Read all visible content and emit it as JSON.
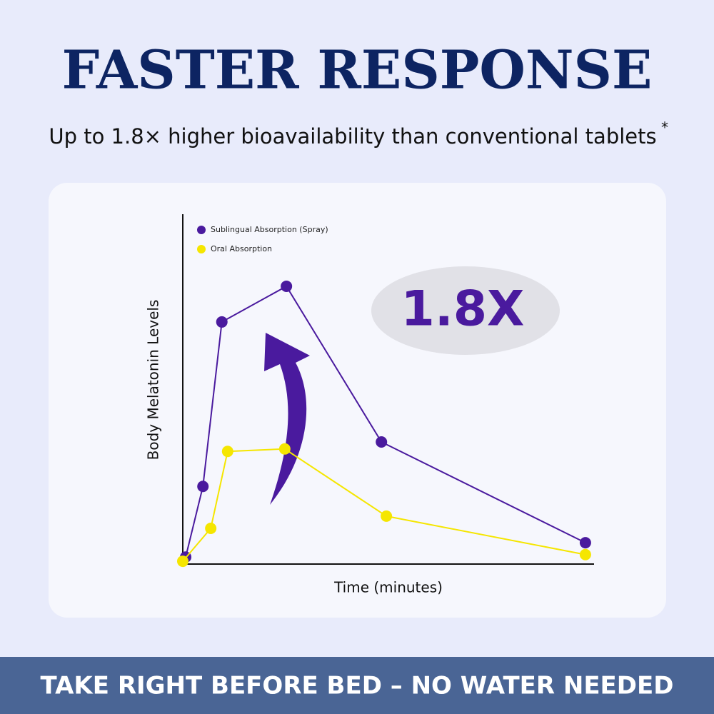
{
  "chart_data": {
    "type": "line",
    "title": "FASTER RESPONSE",
    "subtitle": "Up to 1.8× higher bioavailability than conventional tablets",
    "subtitle_note": "*",
    "annotation": "1.8X",
    "x_label": "Time (minutes)",
    "y_label": "Body Melatonin Levels",
    "footer": "TAKE RIGHT BEFORE BED – NO WATER NEEDED",
    "xlim": [
      0,
      100
    ],
    "ylim": [
      0,
      100
    ],
    "series": [
      {
        "name": "Sublingual Absorption (Spray)",
        "color": "#4a1a9e",
        "x": [
          0.7,
          4.9,
          9.5,
          25.2,
          48.3,
          97.9
        ],
        "values": [
          2.0,
          22.2,
          69.2,
          79.4,
          34.9,
          6.1
        ]
      },
      {
        "name": "Oral Absorption",
        "color": "#f5e600",
        "x": [
          0,
          6.8,
          10.9,
          24.8,
          49.5,
          97.9
        ],
        "values": [
          0.8,
          10.2,
          32.2,
          32.9,
          13.7,
          2.7
        ]
      }
    ]
  }
}
